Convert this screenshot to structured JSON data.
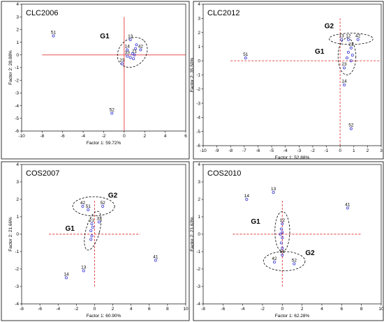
{
  "style": {
    "point_color": "#3a3ad6",
    "line_color": "#e23a3a"
  },
  "chart_data": [
    {
      "type": "scatter",
      "title": "CLC2006",
      "xlabel": "Factor 1: 59.72%",
      "ylabel": "Factor 2: 28.08%",
      "xlim": [
        -10,
        6
      ],
      "ylim": [
        -6,
        4
      ],
      "xticks": [
        -10,
        -8,
        -6,
        -4,
        -2,
        0,
        2,
        4,
        6
      ],
      "yticks": [
        -6,
        -5,
        -4,
        -3,
        -2,
        -1,
        0,
        1,
        2,
        3,
        4
      ],
      "line_style": "solid",
      "vline": {
        "x": 0,
        "y": [
          -6,
          3
        ]
      },
      "hline": {
        "y": 0,
        "x": [
          -8,
          6
        ]
      },
      "points": [
        {
          "label": "51",
          "x": -6.9,
          "y": 1.5
        },
        {
          "label": "13",
          "x": 0.6,
          "y": 1.2
        },
        {
          "label": "",
          "x": 1.2,
          "y": 0.8
        },
        {
          "label": "",
          "x": 1.1,
          "y": 0.5
        },
        {
          "label": "14",
          "x": 0.3,
          "y": 0.4
        },
        {
          "label": "42",
          "x": 1.6,
          "y": 0.4
        },
        {
          "label": "21",
          "x": 1.0,
          "y": 0.0
        },
        {
          "label": "",
          "x": 0.8,
          "y": 0.1
        },
        {
          "label": "33",
          "x": 0.3,
          "y": -0.1
        },
        {
          "label": "",
          "x": 0.6,
          "y": -0.2
        },
        {
          "label": "",
          "x": 0.9,
          "y": -0.3
        },
        {
          "label": "23",
          "x": -0.2,
          "y": -0.7
        },
        {
          "label": "52",
          "x": -1.2,
          "y": -4.6
        }
      ],
      "groups": [
        {
          "label": "G1",
          "cx": 0.8,
          "cy": 0.2,
          "rx": 1.6,
          "ry": 1.05,
          "angle": -45,
          "label_x": -1.9,
          "label_y": 1.3
        }
      ]
    },
    {
      "type": "scatter",
      "title": "CLC2012",
      "xlabel": "Factor 1: 52.88%",
      "ylabel": "Factor 2: 35.50%",
      "xlim": [
        -10,
        3
      ],
      "ylim": [
        -6,
        4
      ],
      "xticks": [
        -10,
        -9,
        -8,
        -7,
        -6,
        -5,
        -4,
        -3,
        -2,
        -1,
        0,
        1,
        2,
        3
      ],
      "yticks": [
        -6,
        -5,
        -4,
        -3,
        -2,
        -1,
        0,
        1,
        2,
        3,
        4
      ],
      "line_style": "dashed",
      "vline": {
        "x": 0,
        "y": [
          -6,
          3
        ]
      },
      "hline": {
        "y": 0,
        "x": [
          -8,
          3
        ]
      },
      "points": [
        {
          "label": "51",
          "x": -6.9,
          "y": 0.2
        },
        {
          "label": "13",
          "x": 0.1,
          "y": 1.5
        },
        {
          "label": "12",
          "x": 0.6,
          "y": 1.5
        },
        {
          "label": "42",
          "x": 1.3,
          "y": 1.5
        },
        {
          "label": "21",
          "x": 0.8,
          "y": 0.9
        },
        {
          "label": "",
          "x": 0.6,
          "y": 0.6
        },
        {
          "label": "",
          "x": 0.9,
          "y": 0.4
        },
        {
          "label": "",
          "x": 0.5,
          "y": 0.2
        },
        {
          "label": "",
          "x": 0.8,
          "y": 0.0
        },
        {
          "label": "23",
          "x": 0.3,
          "y": -0.5
        },
        {
          "label": "14",
          "x": 0.3,
          "y": -1.7
        },
        {
          "label": "52",
          "x": 0.8,
          "y": -4.8
        }
      ],
      "groups": [
        {
          "label": "G2",
          "cx": 0.8,
          "cy": 1.55,
          "rx": 1.6,
          "ry": 0.4,
          "angle": 0,
          "label_x": -0.8,
          "label_y": 2.3
        },
        {
          "label": "G1",
          "cx": 0.5,
          "cy": 0.3,
          "rx": 0.65,
          "ry": 1.3,
          "angle": 0,
          "label_x": -1.5,
          "label_y": 0.5
        }
      ]
    },
    {
      "type": "scatter",
      "title": "COS2007",
      "xlabel": "Factor 1: 60.90%",
      "ylabel": "Factor 2: 21.66%",
      "xlim": [
        -8,
        10
      ],
      "ylim": [
        -4,
        4
      ],
      "xticks": [
        -8,
        -6,
        -4,
        -2,
        0,
        2,
        4,
        6,
        8,
        10
      ],
      "yticks": [
        -4,
        -3,
        -2,
        -1,
        0,
        1,
        2,
        3,
        4
      ],
      "line_style": "dashed",
      "vline": {
        "x": 0,
        "y": [
          -3,
          2
        ]
      },
      "hline": {
        "y": 0,
        "x": [
          -5,
          5
        ]
      },
      "points": [
        {
          "label": "42",
          "x": -1.3,
          "y": 1.6
        },
        {
          "label": "52",
          "x": 0.9,
          "y": 1.6
        },
        {
          "label": "51",
          "x": -0.7,
          "y": 1.4
        },
        {
          "label": "33",
          "x": 0.5,
          "y": 0.7
        },
        {
          "label": "21",
          "x": -0.3,
          "y": 0.6
        },
        {
          "label": "",
          "x": -0.2,
          "y": 0.4
        },
        {
          "label": "",
          "x": -0.4,
          "y": 0.2
        },
        {
          "label": "",
          "x": -0.3,
          "y": -0.1
        },
        {
          "label": "",
          "x": -0.4,
          "y": -0.3
        },
        {
          "label": "13",
          "x": -1.2,
          "y": -2.1
        },
        {
          "label": "14",
          "x": -3.1,
          "y": -2.5
        },
        {
          "label": "41",
          "x": 6.7,
          "y": -1.5
        }
      ],
      "groups": [
        {
          "label": "G2",
          "cx": -0.1,
          "cy": 1.6,
          "rx": 2.3,
          "ry": 0.55,
          "angle": 0,
          "label_x": 2.0,
          "label_y": 2.1
        },
        {
          "label": "G1",
          "cx": -0.2,
          "cy": 0.2,
          "rx": 0.75,
          "ry": 1.15,
          "angle": 15,
          "label_x": -2.7,
          "label_y": 0.2
        }
      ]
    },
    {
      "type": "scatter",
      "title": "COS2010",
      "xlabel": "Factor 1: 62.28%",
      "ylabel": "Factor 2: 21.63%",
      "xlim": [
        -8,
        10
      ],
      "ylim": [
        -4,
        4
      ],
      "xticks": [
        -8,
        -6,
        -4,
        -2,
        0,
        2,
        4,
        6,
        8,
        10
      ],
      "yticks": [
        -4,
        -3,
        -2,
        -1,
        0,
        1,
        2,
        3,
        4
      ],
      "line_style": "dashed",
      "vline": {
        "x": 0,
        "y": [
          -3,
          2
        ]
      },
      "hline": {
        "y": 0,
        "x": [
          -5,
          8
        ]
      },
      "points": [
        {
          "label": "13",
          "x": -0.9,
          "y": 2.4
        },
        {
          "label": "14",
          "x": -3.6,
          "y": 2.0
        },
        {
          "label": "41",
          "x": 6.6,
          "y": 1.5
        },
        {
          "label": "12",
          "x": 0.0,
          "y": 0.6
        },
        {
          "label": "",
          "x": -0.1,
          "y": 0.3
        },
        {
          "label": "",
          "x": 0.0,
          "y": 0.1
        },
        {
          "label": "",
          "x": -0.2,
          "y": 0.0
        },
        {
          "label": "",
          "x": 0.0,
          "y": -0.2
        },
        {
          "label": "",
          "x": -0.1,
          "y": -0.5
        },
        {
          "label": "",
          "x": 0.0,
          "y": -0.8
        },
        {
          "label": "51",
          "x": 0.0,
          "y": -1.2
        },
        {
          "label": "42",
          "x": -0.8,
          "y": -1.6
        },
        {
          "label": "52",
          "x": 1.2,
          "y": -1.7
        }
      ],
      "groups": [
        {
          "label": "G1",
          "cx": 0.0,
          "cy": 0.15,
          "rx": 0.75,
          "ry": 1.15,
          "angle": 0,
          "label_x": -2.7,
          "label_y": 0.6
        },
        {
          "label": "G2",
          "cx": 0.2,
          "cy": -1.55,
          "rx": 2.1,
          "ry": 0.55,
          "angle": 0,
          "label_x": 2.8,
          "label_y": -1.2
        }
      ]
    }
  ]
}
